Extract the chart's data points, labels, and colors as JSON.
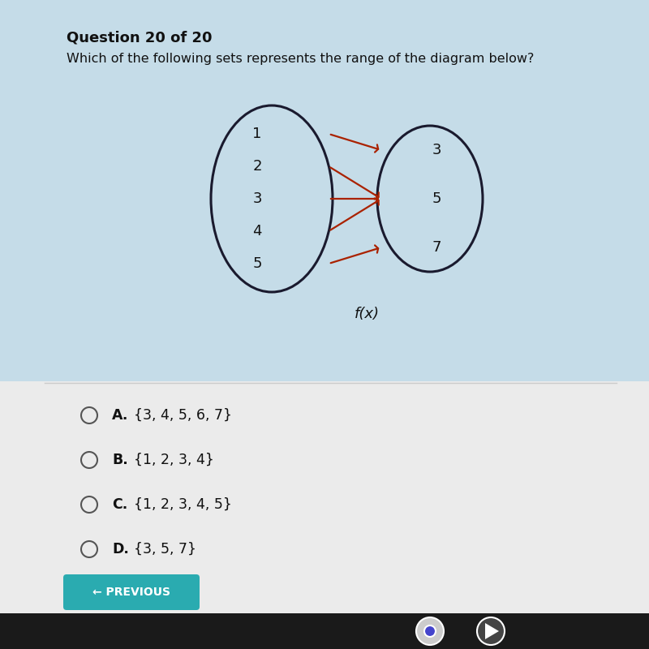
{
  "title": "Question 20 of 20",
  "question": "Which of the following sets represents the range of the diagram below?",
  "left_values": [
    "1",
    "2",
    "3",
    "4",
    "5"
  ],
  "right_values": [
    "3",
    "5",
    "7"
  ],
  "arrows": [
    [
      0,
      0
    ],
    [
      1,
      1
    ],
    [
      2,
      1
    ],
    [
      3,
      1
    ],
    [
      4,
      2
    ]
  ],
  "label": "f(x)",
  "options": [
    {
      "letter": "A",
      "text": "{3, 4, 5, 6, 7}"
    },
    {
      "letter": "B",
      "text": "{1, 2, 3, 4}"
    },
    {
      "letter": "C",
      "text": "{1, 2, 3, 4, 5}"
    },
    {
      "letter": "D",
      "text": "{3, 5, 7}"
    }
  ],
  "bg_top_color": "#c8dde8",
  "bg_bottom_color": "#e8e8e8",
  "ellipse_color": "#1a1a2e",
  "arrow_color": "#aa2200",
  "text_color": "#111111",
  "button_color": "#2aabb0",
  "button_text": "← PREVIOUS",
  "divider_color": "#cccccc",
  "option_circle_color": "#555555"
}
